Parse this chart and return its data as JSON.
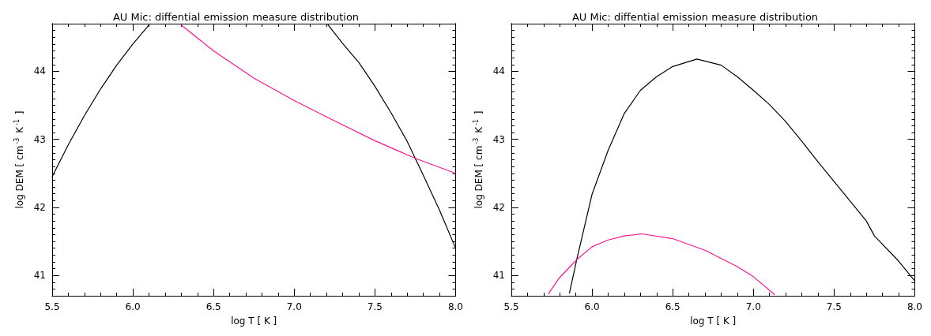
{
  "chart_data": [
    {
      "type": "line",
      "title": "AU Mic: diffential emission measure distribution",
      "xlabel": "log T [ K ]",
      "ylabel": "log DEM [ cm$^{-3}$ K$^{-1}$ ]",
      "marker": "none",
      "line_style": "solid",
      "xlim": [
        5.5,
        8.0
      ],
      "ylim": [
        40.7,
        44.7
      ],
      "xticks": [
        5.5,
        {
          "value": 5.6,
          "label": null
        },
        {
          "value": 5.7,
          "label": null
        },
        {
          "value": 5.8,
          "label": null
        },
        {
          "value": 5.9,
          "label": null
        },
        {
          "value": 6,
          "label": "6.0"
        },
        {
          "value": 6.1,
          "label": null
        },
        {
          "value": 6.2,
          "label": null
        },
        {
          "value": 6.3,
          "label": null
        },
        {
          "value": 6.4,
          "label": null
        },
        6.5,
        {
          "value": 6.6,
          "label": null
        },
        {
          "value": 6.7,
          "label": null
        },
        {
          "value": 6.8,
          "label": null
        },
        {
          "value": 6.9,
          "label": null
        },
        {
          "value": 7,
          "label": "7.0"
        },
        {
          "value": 7.1,
          "label": null
        },
        {
          "value": 7.2,
          "label": null
        },
        {
          "value": 7.3,
          "label": null
        },
        {
          "value": 7.4,
          "label": null
        },
        7.5,
        {
          "value": 7.6,
          "label": null
        },
        {
          "value": 7.7,
          "label": null
        },
        {
          "value": 7.8,
          "label": null
        },
        {
          "value": 7.9,
          "label": null
        },
        {
          "value": 8,
          "label": "8.0"
        }
      ],
      "yticks": [
        {
          "value": 40.8,
          "label": null
        },
        {
          "value": 40.9,
          "label": null
        },
        41,
        {
          "value": 41.1,
          "label": null
        },
        {
          "value": 41.2,
          "label": null
        },
        {
          "value": 41.3,
          "label": null
        },
        {
          "value": 41.4,
          "label": null
        },
        {
          "value": 41.5,
          "label": null
        },
        {
          "value": 41.6,
          "label": null
        },
        {
          "value": 41.7,
          "label": null
        },
        {
          "value": 41.8,
          "label": null
        },
        {
          "value": 41.9,
          "label": null
        },
        42,
        {
          "value": 42.1,
          "label": null
        },
        {
          "value": 42.2,
          "label": null
        },
        {
          "value": 42.3,
          "label": null
        },
        {
          "value": 42.4,
          "label": null
        },
        {
          "value": 42.5,
          "label": null
        },
        {
          "value": 42.6,
          "label": null
        },
        {
          "value": 42.7,
          "label": null
        },
        {
          "value": 42.8,
          "label": null
        },
        {
          "value": 42.9,
          "label": null
        },
        43,
        {
          "value": 43.1,
          "label": null
        },
        {
          "value": 43.2,
          "label": null
        },
        {
          "value": 43.3,
          "label": null
        },
        {
          "value": 43.4,
          "label": null
        },
        {
          "value": 43.5,
          "label": null
        },
        {
          "value": 43.6,
          "label": null
        },
        {
          "value": 43.7,
          "label": null
        },
        {
          "value": 43.8,
          "label": null
        },
        {
          "value": 43.9,
          "label": null
        },
        44,
        {
          "value": 44.1,
          "label": null
        },
        {
          "value": 44.2,
          "label": null
        },
        {
          "value": 44.3,
          "label": null
        },
        {
          "value": 44.4,
          "label": null
        },
        {
          "value": 44.5,
          "label": null
        },
        {
          "value": 44.6,
          "label": null
        }
      ],
      "series": [
        {
          "color": "#000000",
          "x": [
            5.5,
            5.6,
            5.7,
            5.8,
            5.9,
            6.0,
            6.1,
            6.65,
            7.21,
            7.3,
            7.4,
            7.5,
            7.6,
            7.7,
            7.75,
            7.8,
            7.9,
            8.0
          ],
          "values": [
            42.45,
            42.92,
            43.35,
            43.74,
            44.09,
            44.4,
            44.68,
            null,
            44.68,
            44.41,
            44.13,
            43.78,
            43.39,
            42.97,
            42.72,
            42.47,
            41.96,
            41.4
          ]
        },
        {
          "color": "#ff1493",
          "x": [
            6.3,
            6.5,
            6.75,
            7.0,
            7.25,
            7.5,
            7.75,
            8.0
          ],
          "values": [
            44.68,
            44.3,
            43.9,
            43.57,
            43.27,
            42.98,
            42.72,
            42.5
          ]
        }
      ]
    },
    {
      "type": "line",
      "title": "AU Mic: diffential emission measure distribution",
      "xlabel": "log T [ K ]",
      "ylabel": "log DEM [ cm$^{-3}$ K$^{-1}$ ]",
      "marker": "none",
      "line_style": "solid",
      "xlim": [
        5.5,
        8.0
      ],
      "ylim": [
        40.7,
        44.7
      ],
      "xticks": [
        5.5,
        {
          "value": 5.6,
          "label": null
        },
        {
          "value": 5.7,
          "label": null
        },
        {
          "value": 5.8,
          "label": null
        },
        {
          "value": 5.9,
          "label": null
        },
        {
          "value": 6,
          "label": "6.0"
        },
        {
          "value": 6.1,
          "label": null
        },
        {
          "value": 6.2,
          "label": null
        },
        {
          "value": 6.3,
          "label": null
        },
        {
          "value": 6.4,
          "label": null
        },
        6.5,
        {
          "value": 6.6,
          "label": null
        },
        {
          "value": 6.7,
          "label": null
        },
        {
          "value": 6.8,
          "label": null
        },
        {
          "value": 6.9,
          "label": null
        },
        {
          "value": 7,
          "label": "7.0"
        },
        {
          "value": 7.1,
          "label": null
        },
        {
          "value": 7.2,
          "label": null
        },
        {
          "value": 7.3,
          "label": null
        },
        {
          "value": 7.4,
          "label": null
        },
        7.5,
        {
          "value": 7.6,
          "label": null
        },
        {
          "value": 7.7,
          "label": null
        },
        {
          "value": 7.8,
          "label": null
        },
        {
          "value": 7.9,
          "label": null
        },
        {
          "value": 8,
          "label": "8.0"
        }
      ],
      "yticks": [
        {
          "value": 40.8,
          "label": null
        },
        {
          "value": 40.9,
          "label": null
        },
        41,
        {
          "value": 41.1,
          "label": null
        },
        {
          "value": 41.2,
          "label": null
        },
        {
          "value": 41.3,
          "label": null
        },
        {
          "value": 41.4,
          "label": null
        },
        {
          "value": 41.5,
          "label": null
        },
        {
          "value": 41.6,
          "label": null
        },
        {
          "value": 41.7,
          "label": null
        },
        {
          "value": 41.8,
          "label": null
        },
        {
          "value": 41.9,
          "label": null
        },
        42,
        {
          "value": 42.1,
          "label": null
        },
        {
          "value": 42.2,
          "label": null
        },
        {
          "value": 42.3,
          "label": null
        },
        {
          "value": 42.4,
          "label": null
        },
        {
          "value": 42.5,
          "label": null
        },
        {
          "value": 42.6,
          "label": null
        },
        {
          "value": 42.7,
          "label": null
        },
        {
          "value": 42.8,
          "label": null
        },
        {
          "value": 42.9,
          "label": null
        },
        43,
        {
          "value": 43.1,
          "label": null
        },
        {
          "value": 43.2,
          "label": null
        },
        {
          "value": 43.3,
          "label": null
        },
        {
          "value": 43.4,
          "label": null
        },
        {
          "value": 43.5,
          "label": null
        },
        {
          "value": 43.6,
          "label": null
        },
        {
          "value": 43.7,
          "label": null
        },
        {
          "value": 43.8,
          "label": null
        },
        {
          "value": 43.9,
          "label": null
        },
        44,
        {
          "value": 44.1,
          "label": null
        },
        {
          "value": 44.2,
          "label": null
        },
        {
          "value": 44.3,
          "label": null
        },
        {
          "value": 44.4,
          "label": null
        },
        {
          "value": 44.5,
          "label": null
        },
        {
          "value": 44.6,
          "label": null
        }
      ],
      "series": [
        {
          "color": "#000000",
          "x": [
            5.86,
            5.905,
            6.0,
            6.1,
            6.2,
            6.3,
            6.4,
            6.5,
            6.65,
            6.8,
            6.9,
            7.0,
            7.1,
            7.2,
            7.3,
            7.4,
            7.5,
            7.6,
            7.7,
            7.75,
            7.9,
            8.0
          ],
          "values": [
            40.74,
            41.23,
            42.19,
            42.84,
            43.38,
            43.72,
            43.92,
            44.07,
            44.18,
            44.09,
            43.92,
            43.72,
            43.51,
            43.26,
            42.97,
            42.67,
            42.38,
            42.09,
            41.8,
            41.58,
            41.21,
            40.92
          ]
        },
        {
          "color": "#ff1493",
          "x": [
            5.73,
            5.8,
            5.905,
            6.0,
            6.1,
            6.2,
            6.31,
            6.5,
            6.7,
            6.9,
            7.0,
            7.13
          ],
          "values": [
            40.73,
            40.97,
            41.23,
            41.42,
            41.52,
            41.58,
            41.61,
            41.54,
            41.37,
            41.13,
            40.98,
            40.72
          ]
        }
      ]
    }
  ]
}
